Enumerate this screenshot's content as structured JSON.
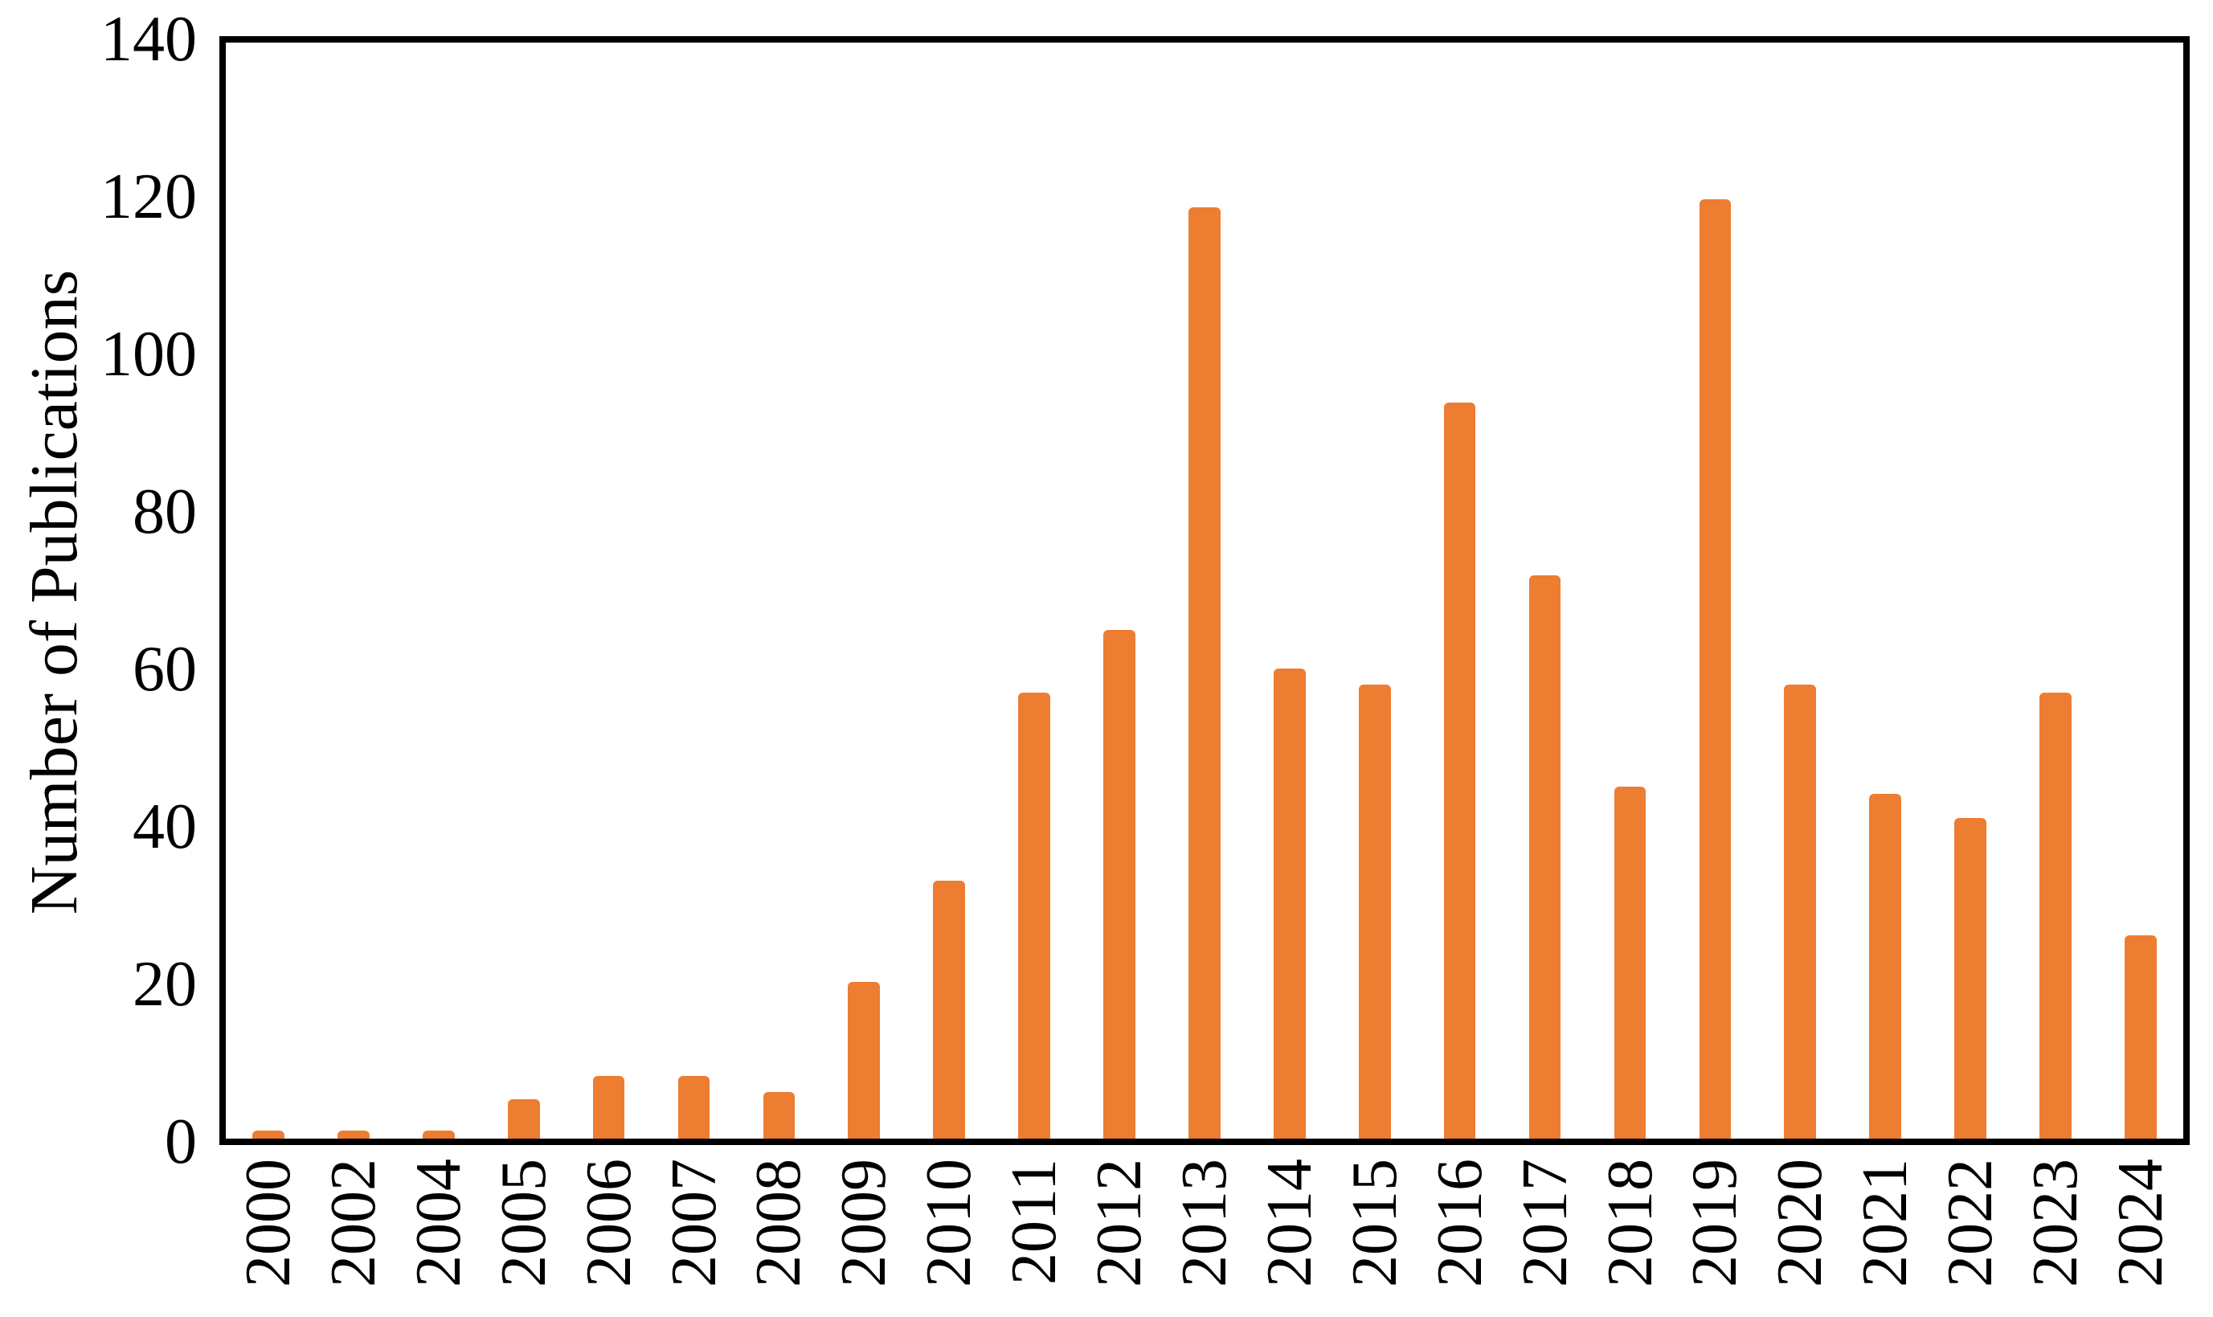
{
  "chart_data": {
    "type": "bar",
    "title": "",
    "xlabel": "",
    "ylabel": "Number of Publications",
    "categories": [
      "2000",
      "2002",
      "2004",
      "2005",
      "2006",
      "2007",
      "2008",
      "2009",
      "2010",
      "2011",
      "2012",
      "2013",
      "2014",
      "2015",
      "2016",
      "2017",
      "2018",
      "2019",
      "2020",
      "2021",
      "2022",
      "2023",
      "2024"
    ],
    "values": [
      1,
      1,
      1,
      5,
      8,
      8,
      6,
      20,
      33,
      57,
      65,
      119,
      60,
      58,
      94,
      72,
      45,
      120,
      58,
      44,
      41,
      57,
      26
    ],
    "ylim": [
      0,
      140
    ],
    "yticks": [
      0,
      20,
      40,
      60,
      80,
      100,
      120,
      140
    ],
    "grid": false,
    "legend": false,
    "bar_color": "#ED7D31",
    "axis_color": "#000000",
    "background_color": "#FFFFFF"
  }
}
